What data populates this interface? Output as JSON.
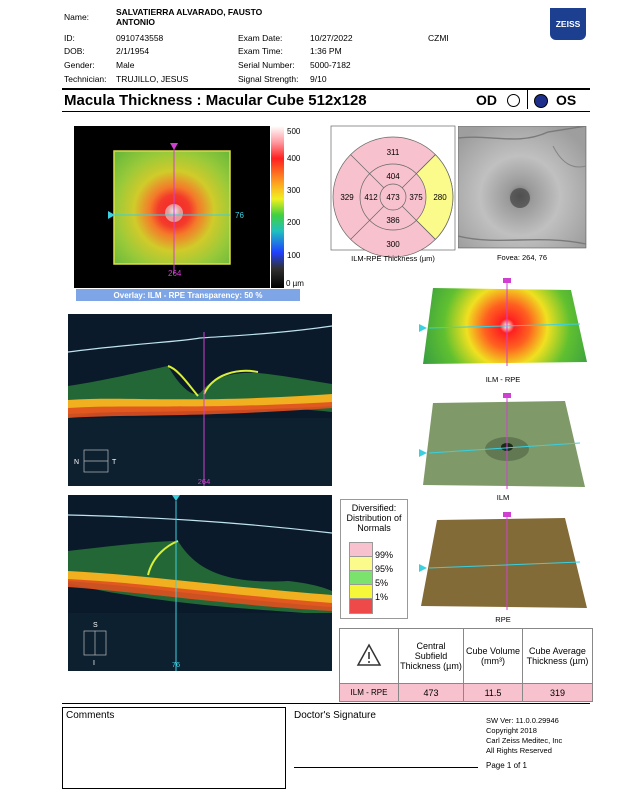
{
  "patient": {
    "name_label": "Name:",
    "name_value": "SALVATIERRA ALVARADO, FAUSTO ANTONIO",
    "id_label": "ID:",
    "id_value": "0910743558",
    "dob_label": "DOB:",
    "dob_value": "2/1/1954",
    "gender_label": "Gender:",
    "gender_value": "Male",
    "tech_label": "Technician:",
    "tech_value": "TRUJILLO, JESUS"
  },
  "exam": {
    "date_label": "Exam Date:",
    "date_value": "10/27/2022",
    "time_label": "Exam Time:",
    "time_value": "1:36 PM",
    "serial_label": "Serial Number:",
    "serial_value": "5000-7182",
    "signal_label": "Signal Strength:",
    "signal_value": "9/10",
    "site": "CZMI"
  },
  "brand": "ZEISS",
  "title": "Macula Thickness : Macular Cube 512x128",
  "eye": {
    "od": "OD",
    "os": "OS",
    "selected": "OS"
  },
  "fundus_map": {
    "scale_labels": [
      "500",
      "400",
      "300",
      "200",
      "100",
      "0 µm"
    ],
    "h_marker": "76",
    "v_marker": "264",
    "overlay_caption": "Overlay: ILM - RPE  Transparency: 50 %"
  },
  "etdrs": {
    "center": "473",
    "inner_superior": "404",
    "inner_inferior": "386",
    "inner_nasal": "412",
    "inner_temporal": "375",
    "outer_superior": "311",
    "outer_inferior": "300",
    "outer_nasal": "329",
    "outer_temporal": "280",
    "caption": "ILM-RPE Thickness (µm)"
  },
  "fovea_caption": "Fovea: 264, 76",
  "oct": {
    "bscan1_position": "264",
    "bscan1_dir_left": "N",
    "bscan1_dir_right": "T",
    "bscan2_position": "76",
    "bscan2_dir_top": "S",
    "bscan2_dir_bottom": "I"
  },
  "surfaces": {
    "ilm_rpe": "ILM - RPE",
    "ilm": "ILM",
    "rpe": "RPE"
  },
  "legend": {
    "title": "Diversified: Distribution of Normals",
    "items": [
      "99%",
      "95%",
      "5%",
      "1%"
    ],
    "colors": [
      "#f7c1cd",
      "#fbfb8c",
      "#7be36d",
      "#f7f73a",
      "#ee4a4a"
    ]
  },
  "results": {
    "col1": "Central Subfield Thickness (µm)",
    "col2": "Cube Volume (mm³)",
    "col3": "Cube Average Thickness (µm)",
    "row_label": "ILM - RPE",
    "csft": "473",
    "volume": "11.5",
    "avg": "319"
  },
  "footer": {
    "comments": "Comments",
    "signature": "Doctor's Signature",
    "sw": "SW Ver: 11.0.0.29946",
    "copyright": "Copyright 2018",
    "company": "Carl Zeiss Meditec, Inc",
    "rights": "All Rights Reserved",
    "page": "Page 1 of 1"
  }
}
